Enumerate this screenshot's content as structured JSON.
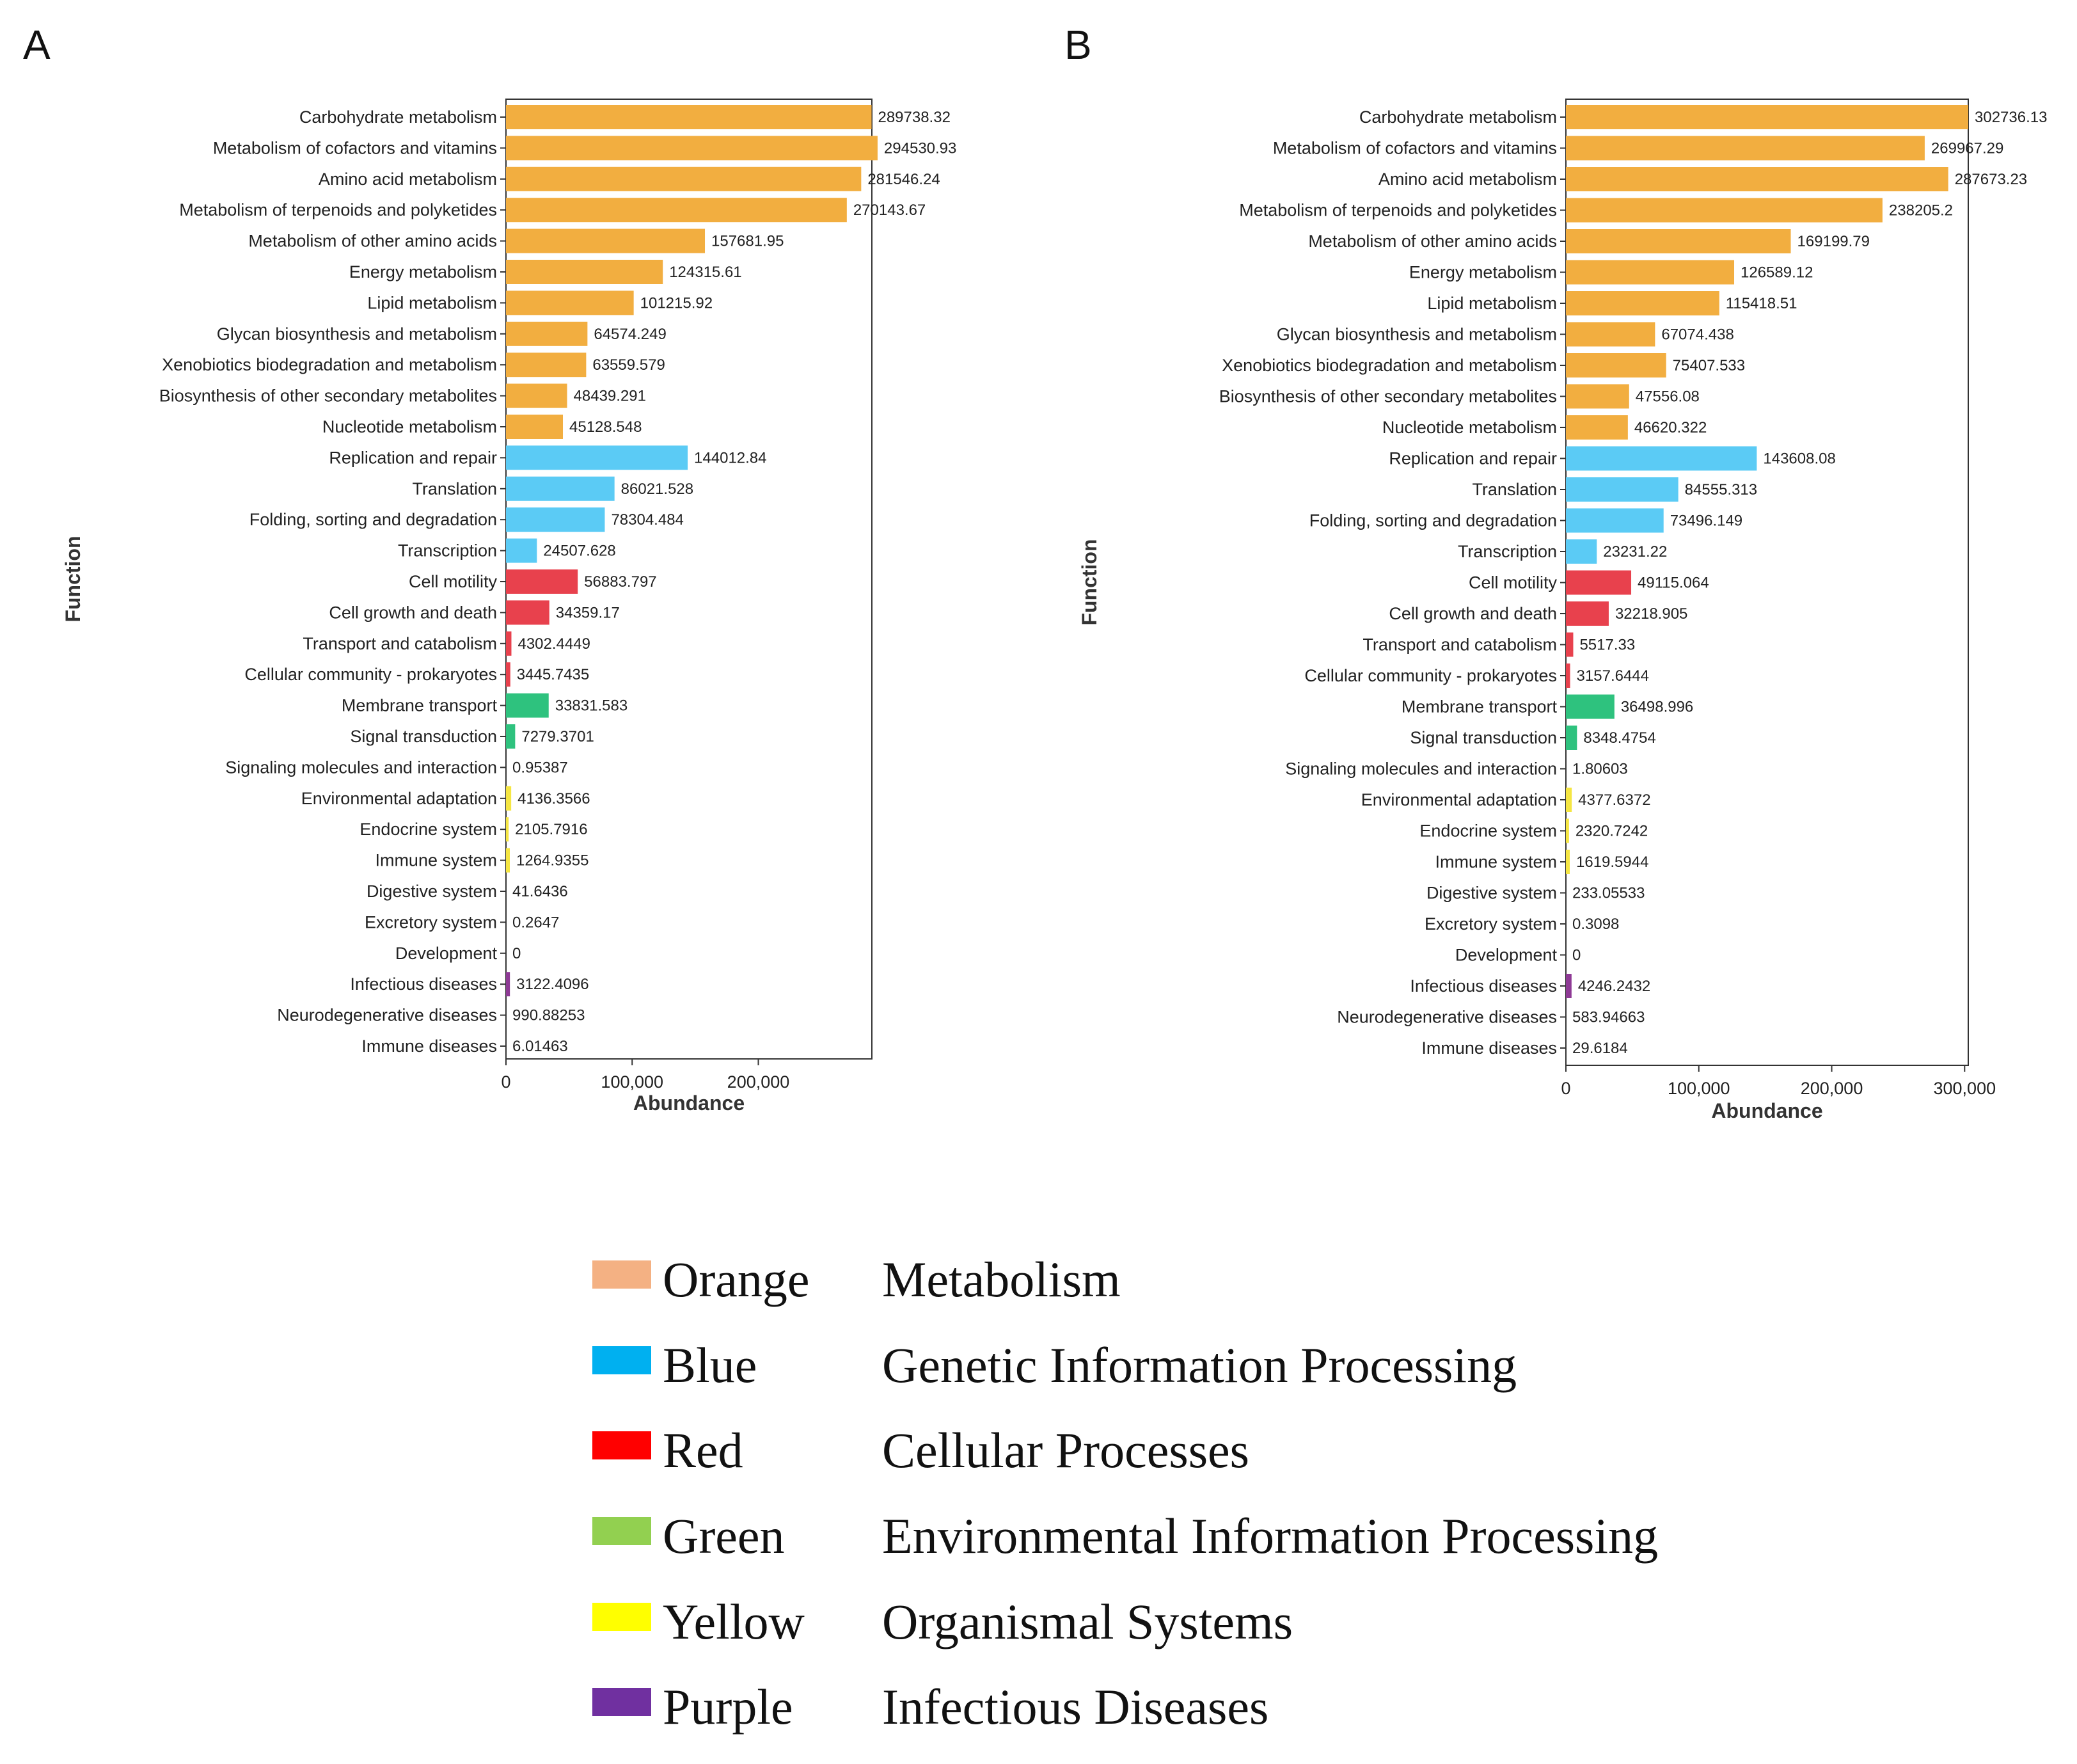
{
  "panel_labels": [
    "A",
    "B"
  ],
  "colors": {
    "metabolism": "#F2AE40",
    "genetic": "#5BCBF5",
    "cellular": "#E8414D",
    "environmental": "#2EC27E",
    "organismal": "#F5E642",
    "infectious": "#8E3A95"
  },
  "chart_data": [
    {
      "type": "bar",
      "orientation": "horizontal",
      "panel": "A",
      "title": "",
      "xlabel": "Abundance",
      "ylabel": "Function",
      "xlim": [
        0,
        290000
      ],
      "xticks": [
        0,
        100000,
        200000
      ],
      "xtick_labels": [
        "0",
        "100,000",
        "200,000"
      ],
      "grid": false,
      "categories": [
        "Carbohydrate metabolism",
        "Metabolism of cofactors and vitamins",
        "Amino acid metabolism",
        "Metabolism of terpenoids and polyketides",
        "Metabolism of other amino acids",
        "Energy metabolism",
        "Lipid metabolism",
        "Glycan biosynthesis and metabolism",
        "Xenobiotics biodegradation and metabolism",
        "Biosynthesis of other secondary metabolites",
        "Nucleotide metabolism",
        "Replication and repair",
        "Translation",
        "Folding, sorting and degradation",
        "Transcription",
        "Cell motility",
        "Cell growth and death",
        "Transport and catabolism",
        "Cellular community - prokaryotes",
        "Membrane transport",
        "Signal transduction",
        "Signaling molecules and interaction",
        "Environmental adaptation",
        "Endocrine system",
        "Immune system",
        "Digestive system",
        "Excretory system",
        "Development",
        "Infectious diseases",
        "Neurodegenerative diseases",
        "Immune diseases"
      ],
      "values": [
        289738.32,
        294530.93,
        281546.24,
        270143.67,
        157681.95,
        124315.61,
        101215.92,
        64574.249,
        63559.579,
        48439.291,
        45128.548,
        144012.84,
        86021.528,
        78304.484,
        24507.628,
        56883.797,
        34359.17,
        4302.4449,
        3445.7435,
        33831.583,
        7279.3701,
        0.95387,
        4136.3566,
        2105.7916,
        1264.9355,
        41.6436,
        0.2647,
        0,
        3122.4096,
        990.88253,
        6.01463
      ],
      "value_labels": [
        "289738.32",
        "294530.93",
        "281546.24",
        "270143.67",
        "157681.95",
        "124315.61",
        "101215.92",
        "64574.249",
        "63559.579",
        "48439.291",
        "45128.548",
        "144012.84",
        "86021.528",
        "78304.484",
        "24507.628",
        "56883.797",
        "34359.17",
        "4302.4449",
        "3445.7435",
        "33831.583",
        "7279.3701",
        "0.95387",
        "4136.3566",
        "2105.7916",
        "1264.9355",
        "41.6436",
        "0.2647",
        "0",
        "3122.4096",
        "990.88253",
        "6.01463"
      ],
      "groups": [
        "metabolism",
        "metabolism",
        "metabolism",
        "metabolism",
        "metabolism",
        "metabolism",
        "metabolism",
        "metabolism",
        "metabolism",
        "metabolism",
        "metabolism",
        "genetic",
        "genetic",
        "genetic",
        "genetic",
        "cellular",
        "cellular",
        "cellular",
        "cellular",
        "environmental",
        "environmental",
        "environmental",
        "organismal",
        "organismal",
        "organismal",
        "organismal",
        "organismal",
        "organismal",
        "infectious",
        "infectious",
        "infectious"
      ]
    },
    {
      "type": "bar",
      "orientation": "horizontal",
      "panel": "B",
      "title": "",
      "xlabel": "Abundance",
      "ylabel": "Function",
      "xlim": [
        0,
        302736.13
      ],
      "xticks": [
        0,
        100000,
        200000,
        300000
      ],
      "xtick_labels": [
        "0",
        "100,000",
        "200,000",
        "300,000"
      ],
      "grid": false,
      "categories": [
        "Carbohydrate metabolism",
        "Metabolism of cofactors and vitamins",
        "Amino acid metabolism",
        "Metabolism of terpenoids and polyketides",
        "Metabolism of other amino acids",
        "Energy metabolism",
        "Lipid metabolism",
        "Glycan biosynthesis and metabolism",
        "Xenobiotics biodegradation and metabolism",
        "Biosynthesis of other secondary metabolites",
        "Nucleotide metabolism",
        "Replication and repair",
        "Translation",
        "Folding, sorting and degradation",
        "Transcription",
        "Cell motility",
        "Cell growth and death",
        "Transport and catabolism",
        "Cellular community - prokaryotes",
        "Membrane transport",
        "Signal transduction",
        "Signaling molecules and interaction",
        "Environmental adaptation",
        "Endocrine system",
        "Immune system",
        "Digestive system",
        "Excretory system",
        "Development",
        "Infectious diseases",
        "Neurodegenerative diseases",
        "Immune diseases"
      ],
      "values": [
        302736.13,
        269967.29,
        287673.23,
        238205.2,
        169199.79,
        126589.12,
        115418.51,
        67074.438,
        75407.533,
        47556.08,
        46620.322,
        143608.08,
        84555.313,
        73496.149,
        23231.22,
        49115.064,
        32218.905,
        5517.33,
        3157.6444,
        36498.996,
        8348.4754,
        1.80603,
        4377.6372,
        2320.7242,
        1619.5944,
        233.05533,
        0.3098,
        0,
        4246.2432,
        583.94663,
        29.6184
      ],
      "value_labels": [
        "302736.13",
        "269967.29",
        "287673.23",
        "238205.2",
        "169199.79",
        "126589.12",
        "115418.51",
        "67074.438",
        "75407.533",
        "47556.08",
        "46620.322",
        "143608.08",
        "84555.313",
        "73496.149",
        "23231.22",
        "49115.064",
        "32218.905",
        "5517.33",
        "3157.6444",
        "36498.996",
        "8348.4754",
        "1.80603",
        "4377.6372",
        "2320.7242",
        "1619.5944",
        "233.05533",
        "0.3098",
        "0",
        "4246.2432",
        "583.94663",
        "29.6184"
      ],
      "groups": [
        "metabolism",
        "metabolism",
        "metabolism",
        "metabolism",
        "metabolism",
        "metabolism",
        "metabolism",
        "metabolism",
        "metabolism",
        "metabolism",
        "metabolism",
        "genetic",
        "genetic",
        "genetic",
        "genetic",
        "cellular",
        "cellular",
        "cellular",
        "cellular",
        "environmental",
        "environmental",
        "environmental",
        "organismal",
        "organismal",
        "organismal",
        "organismal",
        "organismal",
        "organismal",
        "infectious",
        "infectious",
        "infectious"
      ]
    }
  ],
  "legend": [
    {
      "color_name": "Orange",
      "meaning": "Metabolism",
      "swatch": "#F4B183"
    },
    {
      "color_name": "Blue",
      "meaning": "Genetic Information Processing",
      "swatch": "#00B0F0"
    },
    {
      "color_name": "Red",
      "meaning": "Cellular Processes",
      "swatch": "#FF0000"
    },
    {
      "color_name": "Green",
      "meaning": "Environmental Information Processing",
      "swatch": "#92D050"
    },
    {
      "color_name": "Yellow",
      "meaning": "Organismal Systems",
      "swatch": "#FFFF00"
    },
    {
      "color_name": "Purple",
      "meaning": "Infectious Diseases",
      "swatch": "#7030A0"
    }
  ]
}
